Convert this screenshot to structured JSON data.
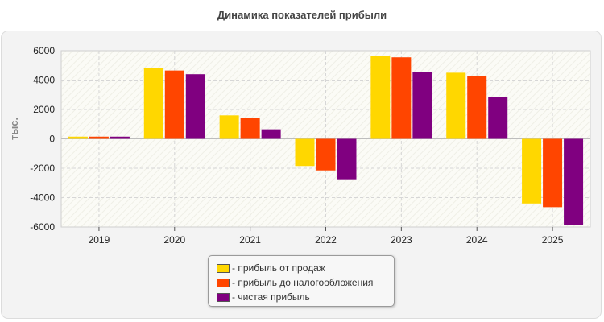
{
  "chart_data": {
    "type": "bar",
    "title": "Динамика показателей прибыли",
    "ylabel": "тыс.",
    "xlabel": "",
    "categories": [
      "2019",
      "2020",
      "2021",
      "2022",
      "2023",
      "2024",
      "2025"
    ],
    "ylim": [
      -6000,
      6000
    ],
    "yticks": [
      6000,
      4000,
      2000,
      0,
      -2000,
      -4000,
      -6000
    ],
    "grid": true,
    "legend_position": "bottom",
    "series": [
      {
        "name": "- прибыль от продаж",
        "color": "#ffd700",
        "values": [
          150,
          4800,
          1600,
          -1850,
          5650,
          4500,
          -4400
        ]
      },
      {
        "name": "- прибыль до налогообложения",
        "color": "#ff4500",
        "values": [
          150,
          4650,
          1400,
          -2150,
          5550,
          4300,
          -4650
        ]
      },
      {
        "name": "- чистая прибыль",
        "color": "#800080",
        "values": [
          150,
          4400,
          650,
          -2750,
          4550,
          2850,
          -5850
        ]
      }
    ]
  }
}
